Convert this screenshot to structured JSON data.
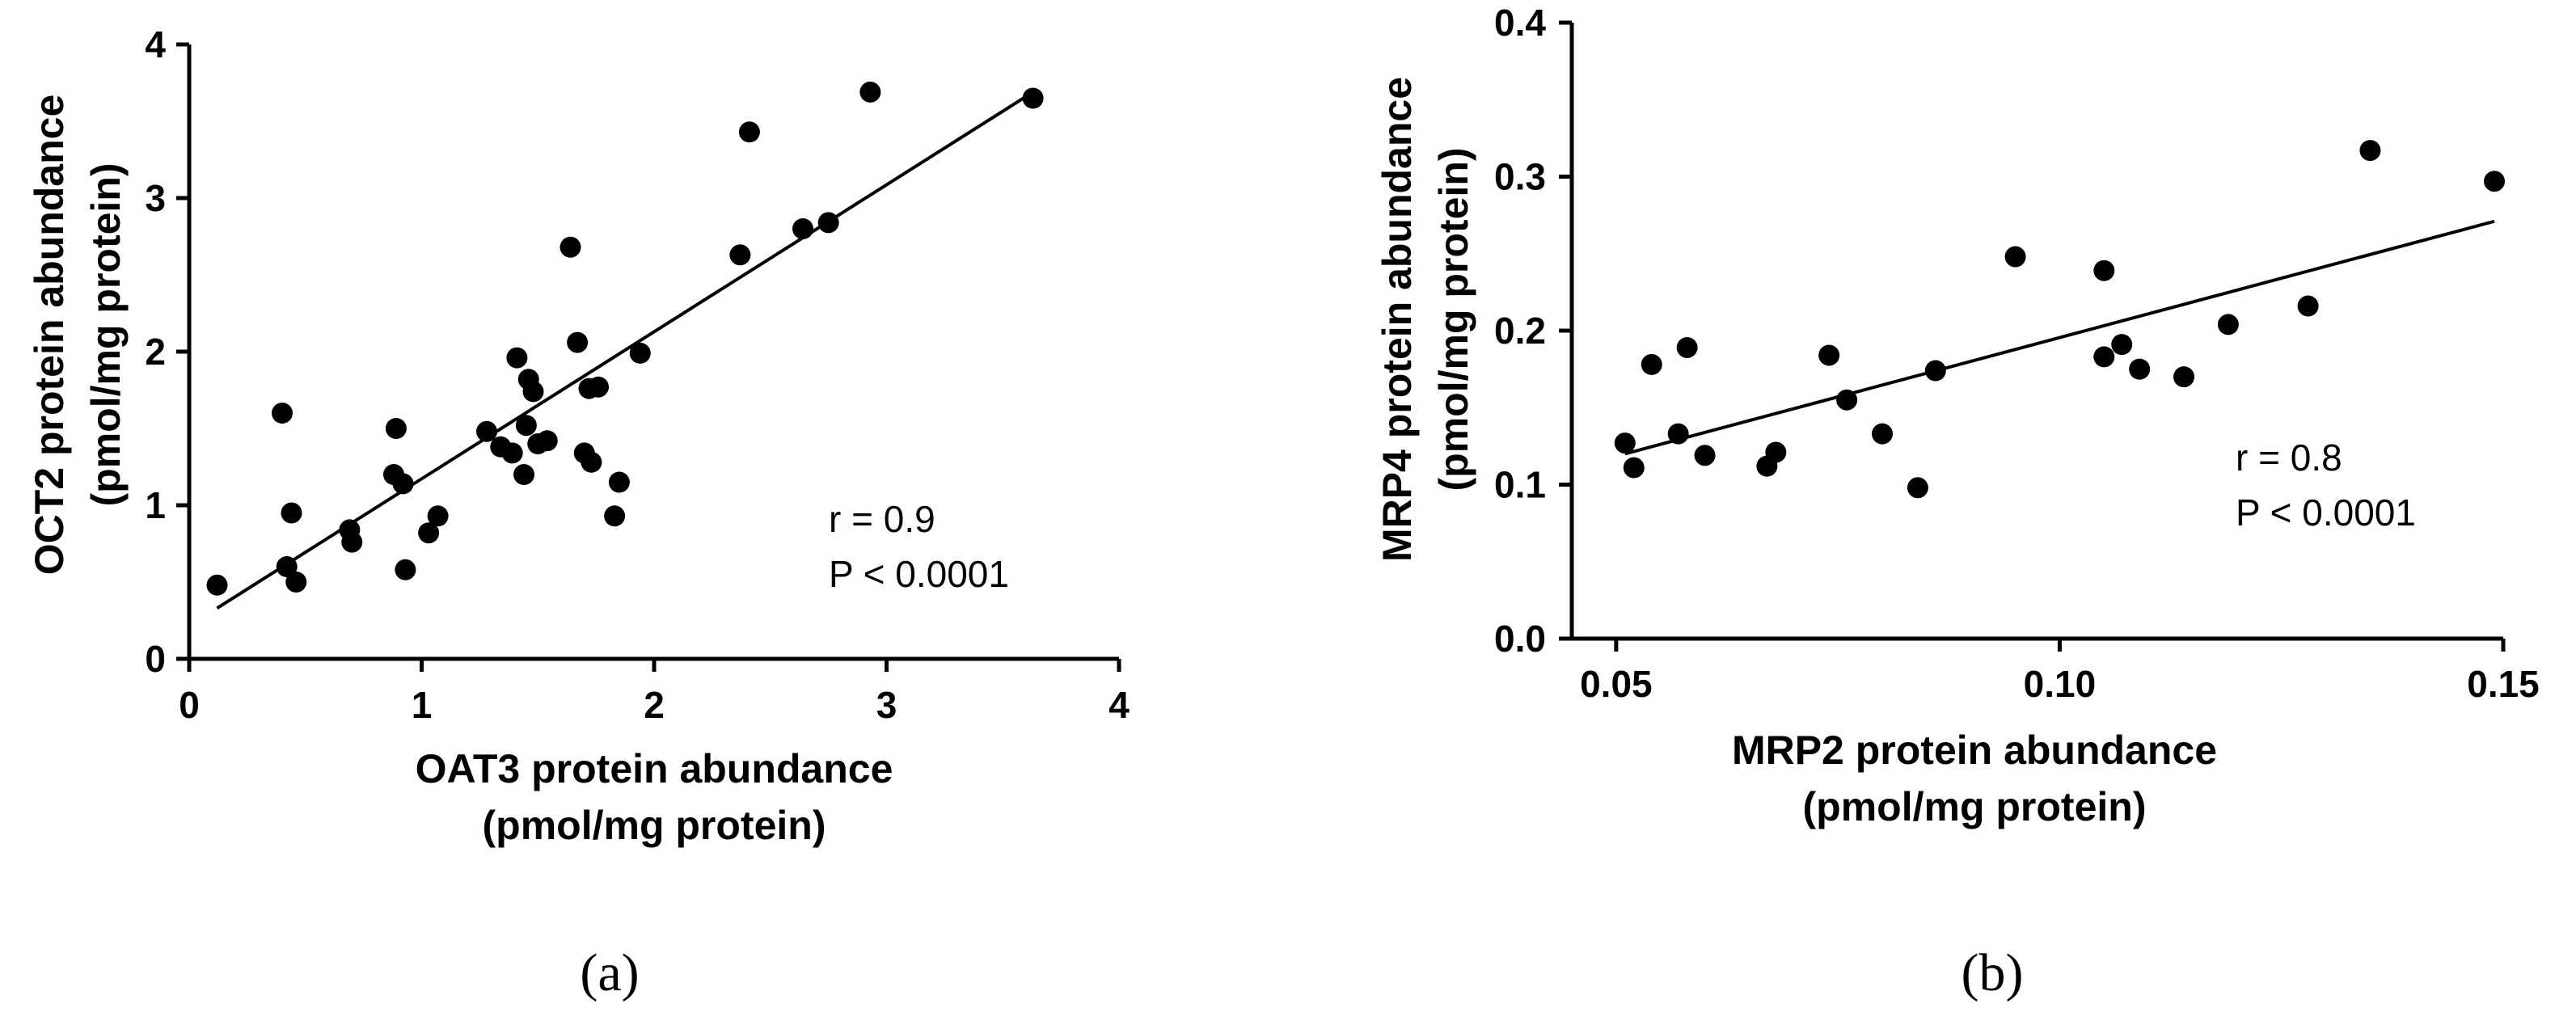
{
  "chart_data": [
    {
      "type": "scatter",
      "panel_label": "(a)",
      "xlabel": [
        "OAT3 protein abundance",
        "(pmol/mg protein)"
      ],
      "ylabel": [
        "OCT2 protein abundance",
        "(pmol/mg protein)"
      ],
      "xlim": [
        0,
        4
      ],
      "ylim": [
        0,
        4
      ],
      "xticks": [
        0,
        1,
        2,
        3,
        4
      ],
      "xtick_labels": [
        "0",
        "1",
        "2",
        "3",
        "4"
      ],
      "yticks": [
        0,
        1,
        2,
        3,
        4
      ],
      "ytick_labels": [
        "0",
        "1",
        "2",
        "3",
        "4"
      ],
      "annotation": [
        "r = 0.9",
        "P < 0.0001"
      ],
      "fit_line": {
        "x": [
          0.12,
          3.62
        ],
        "y": [
          0.33,
          3.68
        ]
      },
      "points": {
        "x": [
          0.12,
          0.4,
          0.42,
          0.44,
          0.46,
          0.69,
          0.7,
          0.88,
          0.89,
          0.92,
          0.93,
          1.03,
          1.07,
          1.28,
          1.34,
          1.39,
          1.41,
          1.44,
          1.45,
          1.46,
          1.48,
          1.5,
          1.54,
          1.64,
          1.67,
          1.7,
          1.72,
          1.73,
          1.76,
          1.83,
          1.85,
          1.94,
          2.37,
          2.41,
          2.64,
          2.75,
          2.93,
          3.63
        ],
        "y": [
          0.48,
          1.6,
          0.6,
          0.95,
          0.5,
          0.84,
          0.76,
          1.2,
          1.5,
          1.14,
          0.58,
          0.82,
          0.93,
          1.48,
          1.38,
          1.34,
          1.96,
          1.2,
          1.52,
          1.82,
          1.74,
          1.4,
          1.42,
          2.68,
          2.06,
          1.34,
          1.76,
          1.28,
          1.77,
          0.93,
          1.15,
          1.99,
          2.63,
          3.43,
          2.8,
          2.84,
          3.69,
          3.65
        ]
      }
    },
    {
      "type": "scatter",
      "panel_label": "(b)",
      "xlabel": [
        "MRP2 protein abundance",
        "(pmol/mg protein)"
      ],
      "ylabel": [
        "MRP4 protein abundance",
        "(pmol/mg protein)"
      ],
      "xlim": [
        0.045,
        0.15
      ],
      "ylim": [
        0,
        0.4
      ],
      "xticks": [
        0.05,
        0.1,
        0.15
      ],
      "xtick_labels": [
        "0.05",
        "0.10",
        "0.15"
      ],
      "yticks": [
        0,
        0.1,
        0.2,
        0.3,
        0.4
      ],
      "ytick_labels": [
        "0.0",
        "0.1",
        "0.2",
        "0.3",
        "0.4"
      ],
      "annotation": [
        "r = 0.8",
        "P < 0.0001"
      ],
      "fit_line": {
        "x": [
          0.051,
          0.149
        ],
        "y": [
          0.12,
          0.271
        ]
      },
      "points": {
        "x": [
          0.051,
          0.052,
          0.054,
          0.057,
          0.058,
          0.06,
          0.067,
          0.068,
          0.074,
          0.076,
          0.08,
          0.084,
          0.086,
          0.095,
          0.105,
          0.105,
          0.107,
          0.109,
          0.114,
          0.119,
          0.128,
          0.135,
          0.149
        ],
        "y": [
          0.127,
          0.111,
          0.178,
          0.133,
          0.189,
          0.119,
          0.112,
          0.121,
          0.184,
          0.155,
          0.133,
          0.098,
          0.174,
          0.248,
          0.239,
          0.183,
          0.191,
          0.175,
          0.17,
          0.204,
          0.216,
          0.317,
          0.297
        ]
      }
    }
  ]
}
